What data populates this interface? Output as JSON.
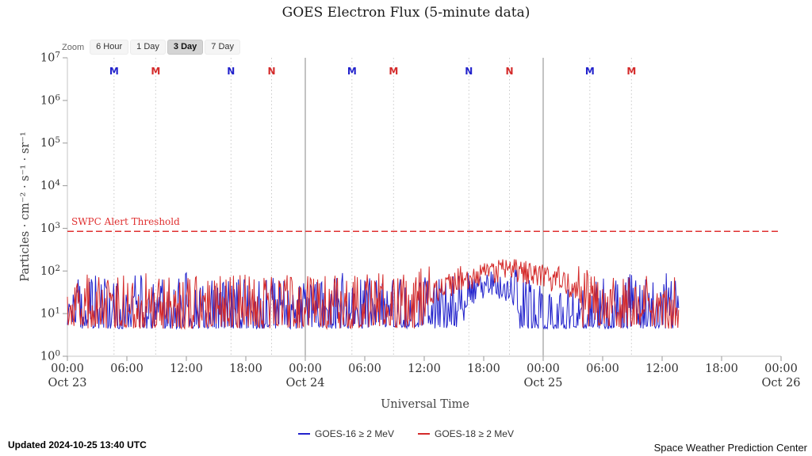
{
  "zoom": {
    "label": "Zoom",
    "buttons": [
      {
        "label": "6 Hour",
        "selected": false
      },
      {
        "label": "1 Day",
        "selected": false
      },
      {
        "label": "3 Day",
        "selected": true
      },
      {
        "label": "7 Day",
        "selected": false
      }
    ]
  },
  "footer": {
    "updated": "Updated 2024-10-25 13:40 UTC",
    "source": "Space Weather Prediction Center"
  },
  "chart_data": {
    "type": "line",
    "title": "GOES Electron Flux (5-minute data)",
    "xlabel": "Universal Time",
    "ylabel": "Particles · cm⁻² · s⁻¹ · sr⁻¹",
    "y_scale": "log10",
    "y_exponents": [
      0,
      1,
      2,
      3,
      4,
      5,
      6,
      7
    ],
    "x_unit": "hours since Oct 23 00:00 UTC",
    "x_range_hours": [
      0,
      72
    ],
    "grid": "vertical day boundaries solid, satellite meridians dotted, no horizontal gridlines",
    "legend_position": "bottom",
    "x_ticks": [
      {
        "hour": 0,
        "label": "00:00"
      },
      {
        "hour": 6,
        "label": "06:00"
      },
      {
        "hour": 12,
        "label": "12:00"
      },
      {
        "hour": 18,
        "label": "18:00"
      },
      {
        "hour": 24,
        "label": "00:00"
      },
      {
        "hour": 30,
        "label": "06:00"
      },
      {
        "hour": 36,
        "label": "12:00"
      },
      {
        "hour": 42,
        "label": "18:00"
      },
      {
        "hour": 48,
        "label": "00:00"
      },
      {
        "hour": 54,
        "label": "06:00"
      },
      {
        "hour": 60,
        "label": "12:00"
      },
      {
        "hour": 66,
        "label": "18:00"
      },
      {
        "hour": 72,
        "label": "00:00"
      }
    ],
    "x_date_labels": [
      {
        "hour": 0,
        "label": "Oct 23"
      },
      {
        "hour": 24,
        "label": "Oct 24"
      },
      {
        "hour": 48,
        "label": "Oct 25"
      },
      {
        "hour": 72,
        "label": "Oct 26"
      }
    ],
    "day_boundary_hours": [
      24,
      48
    ],
    "satellite_markers": [
      {
        "hour": 4.7,
        "letter": "M",
        "series": "GOES-16"
      },
      {
        "hour": 8.9,
        "letter": "M",
        "series": "GOES-18"
      },
      {
        "hour": 16.5,
        "letter": "N",
        "series": "GOES-16"
      },
      {
        "hour": 20.6,
        "letter": "N",
        "series": "GOES-18"
      },
      {
        "hour": 28.7,
        "letter": "M",
        "series": "GOES-16"
      },
      {
        "hour": 32.9,
        "letter": "M",
        "series": "GOES-18"
      },
      {
        "hour": 40.5,
        "letter": "N",
        "series": "GOES-16"
      },
      {
        "hour": 44.6,
        "letter": "N",
        "series": "GOES-18"
      },
      {
        "hour": 52.7,
        "letter": "M",
        "series": "GOES-16"
      },
      {
        "hour": 56.9,
        "letter": "M",
        "series": "GOES-18"
      }
    ],
    "threshold": {
      "label": "SWPC Alert Threshold",
      "value_log10": 2.93,
      "color": "#e03030",
      "style": "dashed"
    },
    "series": [
      {
        "name": "GOES-16 ≥ 2 MeV",
        "color": "#2222cc",
        "seed": 16,
        "end_hour": 61.67,
        "floor_log10": 0.65,
        "noise_base": 0.65,
        "noise_high": 0.35,
        "noise_peak": 0.35,
        "hourly_center_log10": [
          1.2,
          1.28,
          1.12,
          1.3,
          1.18,
          1.08,
          1.26,
          1.32,
          1.15,
          1.1,
          1.24,
          1.18,
          1.32,
          1.26,
          1.12,
          1.2,
          1.3,
          1.24,
          1.16,
          1.1,
          1.22,
          1.32,
          1.26,
          1.18,
          1.12,
          1.26,
          1.32,
          1.2,
          1.26,
          1.14,
          1.2,
          1.26,
          1.32,
          1.22,
          1.14,
          1.26,
          1.22,
          1.32,
          1.28,
          1.34,
          1.48,
          1.58,
          1.64,
          1.68,
          1.62,
          1.52,
          1.4,
          1.18,
          0.98,
          0.92,
          0.9,
          0.96,
          1.02,
          1.12,
          1.18,
          1.22,
          1.28,
          1.32,
          1.26,
          1.34,
          1.46,
          1.3
        ]
      },
      {
        "name": "GOES-18 ≥ 2 MeV",
        "color": "#d42a2a",
        "seed": 18,
        "end_hour": 61.67,
        "floor_log10": 0.65,
        "noise_base": 0.65,
        "noise_high": 0.3,
        "noise_peak": 0.13,
        "hourly_center_log10": [
          1.26,
          1.2,
          1.32,
          1.24,
          1.18,
          1.3,
          1.26,
          1.2,
          1.32,
          1.26,
          1.2,
          1.3,
          1.26,
          1.36,
          1.24,
          1.2,
          1.32,
          1.36,
          1.26,
          1.3,
          1.24,
          1.2,
          1.32,
          1.26,
          1.36,
          1.3,
          1.24,
          1.3,
          1.2,
          1.26,
          1.3,
          1.34,
          1.3,
          1.26,
          1.36,
          1.4,
          1.46,
          1.52,
          1.62,
          1.72,
          1.88,
          1.98,
          2.06,
          2.12,
          2.16,
          2.16,
          2.12,
          2.1,
          2.04,
          1.94,
          1.78,
          1.58,
          1.44,
          1.3,
          1.26,
          1.2,
          1.26,
          1.32,
          1.26,
          1.2,
          1.3,
          1.26
        ]
      }
    ]
  }
}
